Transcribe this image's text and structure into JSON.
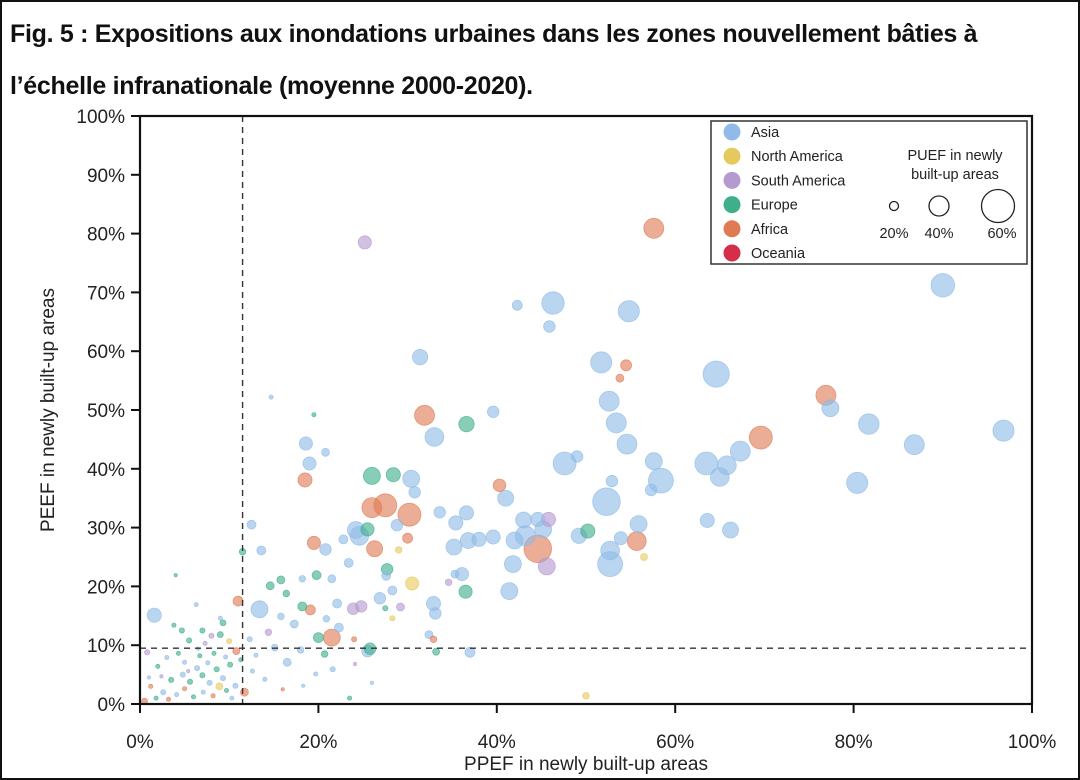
{
  "figure": {
    "title_line1": "Fig. 5 : Expositions aux inondations urbaines dans les zones nouvellement bâties à",
    "title_line2": "l’échelle infranationale (moyenne 2000-2020)."
  },
  "chart_data": {
    "type": "scatter",
    "title": "Fig. 5 : Expositions aux inondations urbaines dans les zones nouvellement bâties à l’échelle infranationale (moyenne 2000-2020).",
    "xlabel": "PPEF in newly built-up areas",
    "ylabel": "PEEF in newly built-up areas",
    "xlim": [
      0,
      100
    ],
    "ylim": [
      0,
      100
    ],
    "x_ticks": [
      "0%",
      "20%",
      "40%",
      "60%",
      "80%",
      "100%"
    ],
    "x_tick_values": [
      0,
      20,
      40,
      60,
      80,
      100
    ],
    "y_ticks": [
      "0%",
      "10%",
      "20%",
      "30%",
      "40%",
      "50%",
      "60%",
      "70%",
      "80%",
      "90%",
      "100%"
    ],
    "y_tick_values": [
      0,
      10,
      20,
      30,
      40,
      50,
      60,
      70,
      80,
      90,
      100
    ],
    "grid": false,
    "reference_lines": {
      "x": 11.5,
      "y": 9.5,
      "style": "dashed"
    },
    "legend_position": "top-right",
    "legend": {
      "regions": [
        {
          "name": "Asia",
          "color": "#8fbbe6"
        },
        {
          "name": "North America",
          "color": "#e6c95c"
        },
        {
          "name": "South America",
          "color": "#b59ad0"
        },
        {
          "name": "Europe",
          "color": "#3fae8a"
        },
        {
          "name": "Africa",
          "color": "#e07a55"
        },
        {
          "name": "Oceania",
          "color": "#d62e4a"
        }
      ],
      "size_title_line1": "PUEF in newly",
      "size_title_line2": "built-up areas",
      "size_keys": [
        {
          "label": "20%",
          "value": 20
        },
        {
          "label": "40%",
          "value": 40
        },
        {
          "label": "60%",
          "value": 60
        }
      ]
    },
    "size_variable": "PUEF in newly built-up areas (%)",
    "point_fields": [
      "x_ppef",
      "y_peef",
      "size_puef",
      "region"
    ],
    "points": [
      [
        90.0,
        71.2,
        46,
        "Asia"
      ],
      [
        96.8,
        46.5,
        42,
        "Asia"
      ],
      [
        86.8,
        44.1,
        40,
        "Asia"
      ],
      [
        81.7,
        47.6,
        41,
        "Asia"
      ],
      [
        77.4,
        50.3,
        35,
        "Asia"
      ],
      [
        80.4,
        37.6,
        42,
        "Asia"
      ],
      [
        76.9,
        52.5,
        40,
        "Africa"
      ],
      [
        69.6,
        45.3,
        45,
        "Africa"
      ],
      [
        67.3,
        43.0,
        40,
        "Asia"
      ],
      [
        65.8,
        40.6,
        38,
        "Asia"
      ],
      [
        64.6,
        56.1,
        50,
        "Asia"
      ],
      [
        65.0,
        38.6,
        38,
        "Asia"
      ],
      [
        63.5,
        40.9,
        45,
        "Asia"
      ],
      [
        66.2,
        29.6,
        33,
        "Asia"
      ],
      [
        63.6,
        31.2,
        30,
        "Asia"
      ],
      [
        58.4,
        38.0,
        48,
        "Asia"
      ],
      [
        57.6,
        41.3,
        35,
        "Asia"
      ],
      [
        57.3,
        36.4,
        25,
        "Asia"
      ],
      [
        55.9,
        30.6,
        35,
        "Asia"
      ],
      [
        57.6,
        80.9,
        40,
        "Africa"
      ],
      [
        54.8,
        66.8,
        42,
        "Asia"
      ],
      [
        46.3,
        68.2,
        44,
        "Asia"
      ],
      [
        45.9,
        64.2,
        25,
        "Asia"
      ],
      [
        42.3,
        67.8,
        22,
        "Asia"
      ],
      [
        51.7,
        58.1,
        42,
        "Asia"
      ],
      [
        54.5,
        57.6,
        24,
        "Africa"
      ],
      [
        53.8,
        55.4,
        18,
        "Africa"
      ],
      [
        52.6,
        51.5,
        40,
        "Asia"
      ],
      [
        53.4,
        47.8,
        40,
        "Asia"
      ],
      [
        54.6,
        44.2,
        40,
        "Asia"
      ],
      [
        47.6,
        40.9,
        45,
        "Asia"
      ],
      [
        49.0,
        42.1,
        25,
        "Asia"
      ],
      [
        52.3,
        34.4,
        52,
        "Asia"
      ],
      [
        52.9,
        37.9,
        25,
        "Asia"
      ],
      [
        52.7,
        26.1,
        38,
        "Asia"
      ],
      [
        52.7,
        23.8,
        48,
        "Asia"
      ],
      [
        55.7,
        27.7,
        38,
        "Africa"
      ],
      [
        56.5,
        25.0,
        16,
        "North America"
      ],
      [
        53.9,
        28.2,
        28,
        "Asia"
      ],
      [
        49.2,
        28.6,
        32,
        "Asia"
      ],
      [
        50.2,
        29.4,
        30,
        "Europe"
      ],
      [
        44.6,
        26.4,
        52,
        "Africa"
      ],
      [
        45.6,
        23.4,
        35,
        "South America"
      ],
      [
        45.8,
        31.4,
        30,
        "South America"
      ],
      [
        45.2,
        29.7,
        35,
        "Asia"
      ],
      [
        44.6,
        31.4,
        30,
        "Asia"
      ],
      [
        43.0,
        31.3,
        33,
        "Asia"
      ],
      [
        43.2,
        28.6,
        40,
        "Asia"
      ],
      [
        42.0,
        27.8,
        35,
        "Asia"
      ],
      [
        41.8,
        23.8,
        35,
        "Asia"
      ],
      [
        41.4,
        19.2,
        35,
        "Asia"
      ],
      [
        41.0,
        35.0,
        33,
        "Asia"
      ],
      [
        40.3,
        37.2,
        27,
        "Africa"
      ],
      [
        39.6,
        49.7,
        25,
        "Asia"
      ],
      [
        39.6,
        28.4,
        30,
        "Asia"
      ],
      [
        38.0,
        28.0,
        30,
        "Asia"
      ],
      [
        36.8,
        27.8,
        33,
        "Asia"
      ],
      [
        36.6,
        47.6,
        32,
        "Europe"
      ],
      [
        36.6,
        32.5,
        30,
        "Asia"
      ],
      [
        36.1,
        22.1,
        28,
        "Asia"
      ],
      [
        35.4,
        30.8,
        30,
        "Asia"
      ],
      [
        35.2,
        26.7,
        33,
        "Asia"
      ],
      [
        36.5,
        19.1,
        28,
        "Europe"
      ],
      [
        35.3,
        22.1,
        18,
        "Asia"
      ],
      [
        33.6,
        32.6,
        25,
        "Asia"
      ],
      [
        33.0,
        45.4,
        38,
        "Asia"
      ],
      [
        31.9,
        49.1,
        40,
        "Africa"
      ],
      [
        31.4,
        59.0,
        32,
        "Asia"
      ],
      [
        32.9,
        17.1,
        30,
        "Asia"
      ],
      [
        33.1,
        15.4,
        25,
        "Asia"
      ],
      [
        34.6,
        20.7,
        15,
        "South America"
      ],
      [
        30.4,
        38.3,
        35,
        "Asia"
      ],
      [
        30.8,
        36.0,
        25,
        "Asia"
      ],
      [
        30.2,
        32.2,
        45,
        "Africa"
      ],
      [
        30.0,
        28.2,
        22,
        "Africa"
      ],
      [
        30.5,
        20.5,
        28,
        "North America"
      ],
      [
        28.4,
        39.0,
        30,
        "Europe"
      ],
      [
        28.8,
        30.4,
        25,
        "Asia"
      ],
      [
        27.5,
        33.8,
        45,
        "Africa"
      ],
      [
        27.7,
        22.9,
        25,
        "Europe"
      ],
      [
        27.6,
        21.8,
        20,
        "Asia"
      ],
      [
        26.3,
        26.4,
        33,
        "Africa"
      ],
      [
        26.0,
        38.8,
        35,
        "Europe"
      ],
      [
        26.0,
        33.4,
        40,
        "Africa"
      ],
      [
        25.5,
        29.7,
        28,
        "Europe"
      ],
      [
        24.2,
        29.6,
        35,
        "Asia"
      ],
      [
        24.6,
        28.6,
        38,
        "Asia"
      ],
      [
        25.2,
        78.5,
        28,
        "South America"
      ],
      [
        23.4,
        24.0,
        20,
        "Asia"
      ],
      [
        22.8,
        28.0,
        20,
        "Asia"
      ],
      [
        21.5,
        21.3,
        18,
        "Asia"
      ],
      [
        20.8,
        26.3,
        25,
        "Asia"
      ],
      [
        20.8,
        42.8,
        18,
        "Asia"
      ],
      [
        19.5,
        49.2,
        10,
        "Europe"
      ],
      [
        19.0,
        40.9,
        28,
        "Asia"
      ],
      [
        18.6,
        44.3,
        28,
        "Asia"
      ],
      [
        18.5,
        38.1,
        30,
        "Africa"
      ],
      [
        19.5,
        27.4,
        28,
        "Africa"
      ],
      [
        18.2,
        21.3,
        15,
        "Asia"
      ],
      [
        19.8,
        21.9,
        20,
        "Europe"
      ],
      [
        14.7,
        52.2,
        10,
        "Asia"
      ],
      [
        13.6,
        26.1,
        20,
        "Asia"
      ],
      [
        12.5,
        30.5,
        20,
        "Asia"
      ],
      [
        13.4,
        16.1,
        35,
        "Asia"
      ],
      [
        11.5,
        25.9,
        15,
        "Europe"
      ],
      [
        11.0,
        17.5,
        22,
        "Africa"
      ],
      [
        1.6,
        15.1,
        30,
        "Asia"
      ],
      [
        0.8,
        8.8,
        12,
        "South America"
      ],
      [
        21.5,
        11.3,
        35,
        "Africa"
      ],
      [
        22.1,
        17.1,
        20,
        "Asia"
      ],
      [
        23.9,
        16.2,
        25,
        "South America"
      ],
      [
        24.8,
        16.6,
        25,
        "South America"
      ],
      [
        25.5,
        9.0,
        25,
        "Asia"
      ],
      [
        25.8,
        9.4,
        25,
        "Europe"
      ],
      [
        28.3,
        19.3,
        20,
        "Asia"
      ],
      [
        26.9,
        18.0,
        25,
        "Asia"
      ],
      [
        22.3,
        13.0,
        20,
        "Asia"
      ],
      [
        20.0,
        11.3,
        22,
        "Europe"
      ],
      [
        19.1,
        16.0,
        22,
        "Africa"
      ],
      [
        18.2,
        16.6,
        20,
        "Europe"
      ],
      [
        17.3,
        13.6,
        18,
        "Asia"
      ],
      [
        15.8,
        21.1,
        18,
        "Europe"
      ],
      [
        14.6,
        20.1,
        18,
        "Europe"
      ],
      [
        16.4,
        18.8,
        15,
        "Europe"
      ],
      [
        15.8,
        14.9,
        15,
        "Asia"
      ],
      [
        15.1,
        9.6,
        15,
        "Asia"
      ],
      [
        14.4,
        12.2,
        15,
        "South America"
      ],
      [
        16.5,
        7.1,
        18,
        "Asia"
      ],
      [
        18.0,
        9.2,
        15,
        "Asia"
      ],
      [
        20.7,
        8.5,
        15,
        "Europe"
      ],
      [
        21.6,
        5.9,
        12,
        "Asia"
      ],
      [
        23.5,
        1.0,
        10,
        "Europe"
      ],
      [
        50.0,
        1.4,
        15,
        "North America"
      ],
      [
        11.7,
        2.0,
        18,
        "Africa"
      ],
      [
        37.0,
        8.8,
        22,
        "Asia"
      ],
      [
        32.9,
        11.0,
        15,
        "Africa"
      ],
      [
        33.2,
        8.9,
        16,
        "Europe"
      ],
      [
        32.4,
        11.8,
        18,
        "Asia"
      ],
      [
        28.3,
        14.6,
        12,
        "North America"
      ],
      [
        27.5,
        16.3,
        12,
        "Europe"
      ],
      [
        29.2,
        16.5,
        18,
        "South America"
      ],
      [
        29.0,
        26.2,
        15,
        "North America"
      ],
      [
        20.9,
        14.5,
        15,
        "Asia"
      ],
      [
        24.0,
        11.0,
        12,
        "Africa"
      ],
      [
        9.3,
        13.8,
        14,
        "Europe"
      ],
      [
        9.0,
        11.8,
        14,
        "Europe"
      ],
      [
        8.0,
        11.6,
        12,
        "South America"
      ],
      [
        7.0,
        12.5,
        12,
        "Europe"
      ],
      [
        5.5,
        10.8,
        12,
        "Europe"
      ],
      [
        4.7,
        12.5,
        12,
        "Europe"
      ],
      [
        3.8,
        13.4,
        10,
        "Europe"
      ],
      [
        6.3,
        16.9,
        10,
        "Asia"
      ],
      [
        9.0,
        14.6,
        10,
        "Asia"
      ],
      [
        10.8,
        9.0,
        16,
        "Africa"
      ],
      [
        10.0,
        10.7,
        12,
        "North America"
      ],
      [
        4.0,
        21.9,
        8,
        "Europe"
      ],
      [
        2.6,
        2.0,
        12,
        "Asia"
      ],
      [
        3.5,
        4.1,
        12,
        "Europe"
      ],
      [
        4.8,
        5.0,
        12,
        "Asia"
      ],
      [
        5.6,
        3.8,
        12,
        "Europe"
      ],
      [
        6.4,
        6.1,
        12,
        "Asia"
      ],
      [
        7.0,
        4.9,
        12,
        "Europe"
      ],
      [
        7.8,
        3.6,
        12,
        "Asia"
      ],
      [
        8.6,
        5.9,
        12,
        "Europe"
      ],
      [
        9.3,
        4.4,
        12,
        "Asia"
      ],
      [
        10.1,
        6.7,
        12,
        "Europe"
      ],
      [
        10.7,
        3.1,
        12,
        "Asia"
      ],
      [
        2.0,
        6.4,
        10,
        "Europe"
      ],
      [
        3.0,
        7.9,
        10,
        "Asia"
      ],
      [
        4.3,
        8.6,
        10,
        "Europe"
      ],
      [
        5.0,
        7.1,
        10,
        "Asia"
      ],
      [
        6.7,
        8.2,
        10,
        "Europe"
      ],
      [
        7.6,
        7.0,
        10,
        "Asia"
      ],
      [
        8.3,
        8.6,
        10,
        "Europe"
      ],
      [
        9.6,
        8.0,
        10,
        "Asia"
      ],
      [
        1.2,
        3.0,
        10,
        "Africa"
      ],
      [
        1.8,
        1.0,
        10,
        "Europe"
      ],
      [
        3.2,
        0.8,
        10,
        "Africa"
      ],
      [
        4.1,
        1.6,
        10,
        "Asia"
      ],
      [
        5.0,
        2.6,
        10,
        "Africa"
      ],
      [
        6.0,
        1.2,
        10,
        "Europe"
      ],
      [
        7.1,
        2.0,
        10,
        "Asia"
      ],
      [
        8.2,
        1.4,
        10,
        "Africa"
      ],
      [
        9.7,
        2.3,
        10,
        "Europe"
      ],
      [
        10.3,
        1.0,
        10,
        "Asia"
      ],
      [
        2.4,
        4.7,
        8,
        "South America"
      ],
      [
        5.4,
        5.6,
        8,
        "South America"
      ],
      [
        8.9,
        3.0,
        16,
        "North America"
      ],
      [
        0.5,
        0.5,
        14,
        "Africa"
      ],
      [
        1.0,
        4.5,
        8,
        "Asia"
      ],
      [
        6.5,
        9.4,
        8,
        "Asia"
      ],
      [
        7.3,
        10.3,
        10,
        "South America"
      ],
      [
        11.3,
        7.5,
        10,
        "Europe"
      ],
      [
        12.6,
        5.6,
        10,
        "Asia"
      ],
      [
        13.0,
        8.3,
        10,
        "Asia"
      ],
      [
        12.3,
        11.0,
        12,
        "Asia"
      ],
      [
        14.0,
        4.2,
        10,
        "Asia"
      ],
      [
        16.0,
        2.5,
        8,
        "Africa"
      ],
      [
        18.3,
        3.1,
        8,
        "Asia"
      ],
      [
        19.7,
        5.1,
        10,
        "Asia"
      ],
      [
        24.1,
        6.8,
        8,
        "South America"
      ],
      [
        26.0,
        3.6,
        8,
        "Asia"
      ]
    ]
  }
}
